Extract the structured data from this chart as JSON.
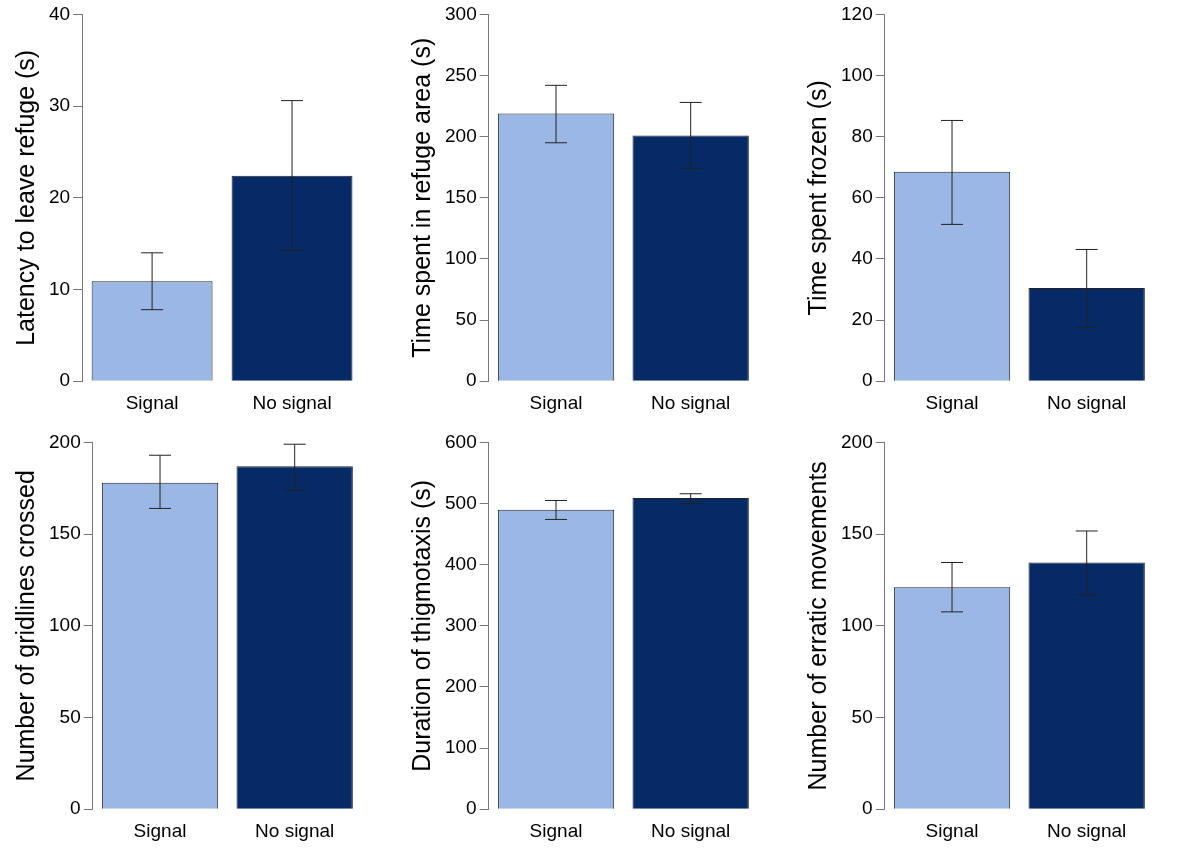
{
  "chart_data": [
    {
      "type": "bar",
      "ylabel": "Latency to leave refuge (s)",
      "categories": [
        "Signal",
        "No signal"
      ],
      "values": [
        10.9,
        22.4
      ],
      "colors": [
        "#9ab7e6",
        "#052a66"
      ],
      "errors": [
        [
          7.8,
          14.0
        ],
        [
          14.3,
          30.6
        ]
      ],
      "ylim": [
        0,
        40
      ],
      "yticks": [
        0,
        10,
        20,
        30,
        40
      ]
    },
    {
      "type": "bar",
      "ylabel": "Time spent in refuge area (s)",
      "categories": [
        "Signal",
        "No signal"
      ],
      "values": [
        219,
        201
      ],
      "colors": [
        "#9ab7e6",
        "#052a66"
      ],
      "errors": [
        [
          195,
          242
        ],
        [
          174,
          228
        ]
      ],
      "ylim": [
        0,
        300
      ],
      "yticks": [
        0,
        50,
        100,
        150,
        200,
        250,
        300
      ]
    },
    {
      "type": "bar",
      "ylabel": "Time spent frozen (s)",
      "categories": [
        "Signal",
        "No signal"
      ],
      "values": [
        68.5,
        30.5
      ],
      "colors": [
        "#9ab7e6",
        "#052a66"
      ],
      "errors": [
        [
          51.3,
          85.3
        ],
        [
          17.8,
          43.1
        ]
      ],
      "ylim": [
        0,
        120
      ],
      "yticks": [
        0,
        20,
        40,
        60,
        80,
        100,
        120
      ]
    },
    {
      "type": "bar",
      "ylabel": "Number of gridlines crossed",
      "categories": [
        "Signal",
        "No signal"
      ],
      "values": [
        178,
        187
      ],
      "colors": [
        "#9ab7e6",
        "#052a66"
      ],
      "errors": [
        [
          164,
          193
        ],
        [
          174,
          199
        ]
      ],
      "ylim": [
        0,
        200
      ],
      "yticks": [
        0,
        50,
        100,
        150,
        200
      ]
    },
    {
      "type": "bar",
      "ylabel": "Duration of thigmotaxis (s)",
      "categories": [
        "Signal",
        "No signal"
      ],
      "values": [
        490,
        509
      ],
      "colors": [
        "#9ab7e6",
        "#052a66"
      ],
      "errors": [
        [
          474,
          505
        ],
        [
          500,
          516
        ]
      ],
      "ylim": [
        0,
        600
      ],
      "yticks": [
        0,
        100,
        200,
        300,
        400,
        500,
        600
      ]
    },
    {
      "type": "bar",
      "ylabel": "Number of erratic movements",
      "categories": [
        "Signal",
        "No signal"
      ],
      "values": [
        121,
        134.5
      ],
      "colors": [
        "#9ab7e6",
        "#052a66"
      ],
      "errors": [
        [
          107.6,
          134.5
        ],
        [
          116.8,
          151.7
        ]
      ],
      "ylim": [
        0,
        200
      ],
      "yticks": [
        0,
        50,
        100,
        150,
        200
      ]
    }
  ]
}
